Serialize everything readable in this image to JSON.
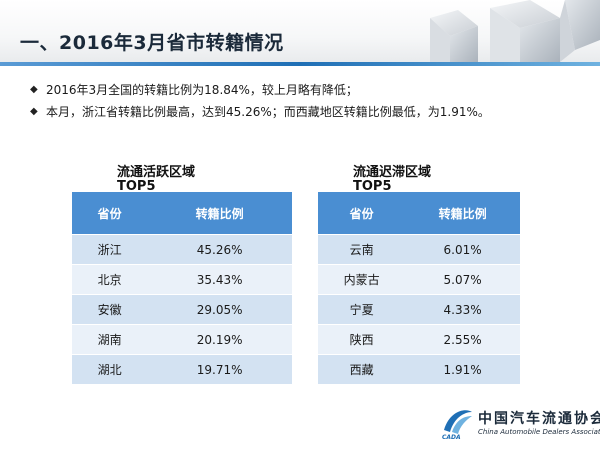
{
  "page": {
    "title": "一、2016年3月省市转籍情况"
  },
  "bullets": [
    "2016年3月全国的转籍比例为18.84%，较上月略有降低；",
    "本月，浙江省转籍比例最高，达到45.26%；而西藏地区转籍比例最低，为1.91%。"
  ],
  "active_table": {
    "title_line1": "流通活跃区域",
    "title_line2": "TOP5",
    "headers": [
      "省份",
      "转籍比例"
    ],
    "rows": [
      [
        "浙江",
        "45.26%"
      ],
      [
        "北京",
        "35.43%"
      ],
      [
        "安徽",
        "29.05%"
      ],
      [
        "湖南",
        "20.19%"
      ],
      [
        "湖北",
        "19.71%"
      ]
    ]
  },
  "stagnant_table": {
    "title_line1": "流通迟滞区域",
    "title_line2": "TOP5",
    "headers": [
      "省份",
      "转籍比例"
    ],
    "rows": [
      [
        "云南",
        "6.01%"
      ],
      [
        "内蒙古",
        "5.07%"
      ],
      [
        "宁夏",
        "4.33%"
      ],
      [
        "陕西",
        "2.55%"
      ],
      [
        "西藏",
        "1.91%"
      ]
    ]
  },
  "logo": {
    "name_cn": "中国汽车流通协会",
    "name_en": "China Automobile Dealers Association",
    "abbr": "CADA"
  },
  "colors": {
    "header_blue": "#4a8ed2",
    "row_odd": "#d3e2f2",
    "row_even": "#eaf1f9",
    "accent": "#1f6fb5"
  }
}
